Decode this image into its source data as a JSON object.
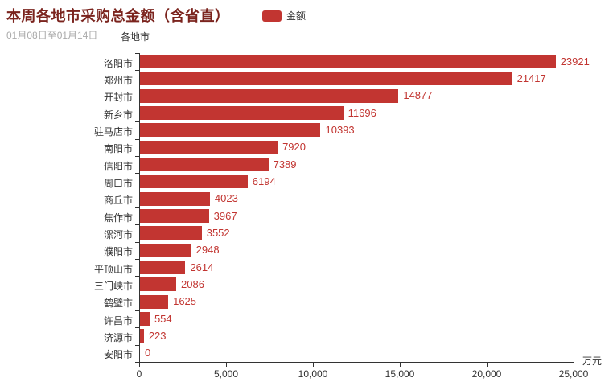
{
  "chart_data": {
    "type": "bar",
    "orientation": "horizontal",
    "title": "本周各地市采购总金额（含省直）",
    "subtitle": "01月08日至01月14日",
    "series_name": "金额",
    "categories": [
      "洛阳市",
      "郑州市",
      "开封市",
      "新乡市",
      "驻马店市",
      "南阳市",
      "信阳市",
      "周口市",
      "商丘市",
      "焦作市",
      "漯河市",
      "濮阳市",
      "平顶山市",
      "三门峡市",
      "鹤壁市",
      "许昌市",
      "济源市",
      "安阳市"
    ],
    "values": [
      23921,
      21417,
      14877,
      11696,
      10393,
      7920,
      7389,
      6194,
      4023,
      3967,
      3552,
      2948,
      2614,
      2086,
      1625,
      554,
      223,
      0
    ],
    "xlabel": "万元",
    "ylabel": "各地市",
    "xlim": [
      0,
      25000
    ],
    "x_ticks": [
      "0",
      "5,000",
      "10,000",
      "15,000",
      "20,000",
      "25,000"
    ],
    "grid": false,
    "legend_position": "top",
    "colors": {
      "bar": "#c23531",
      "value_label": "#c23531",
      "title": "#7b241e",
      "subtitle": "#aaaaaa",
      "axis": "#333333"
    }
  }
}
